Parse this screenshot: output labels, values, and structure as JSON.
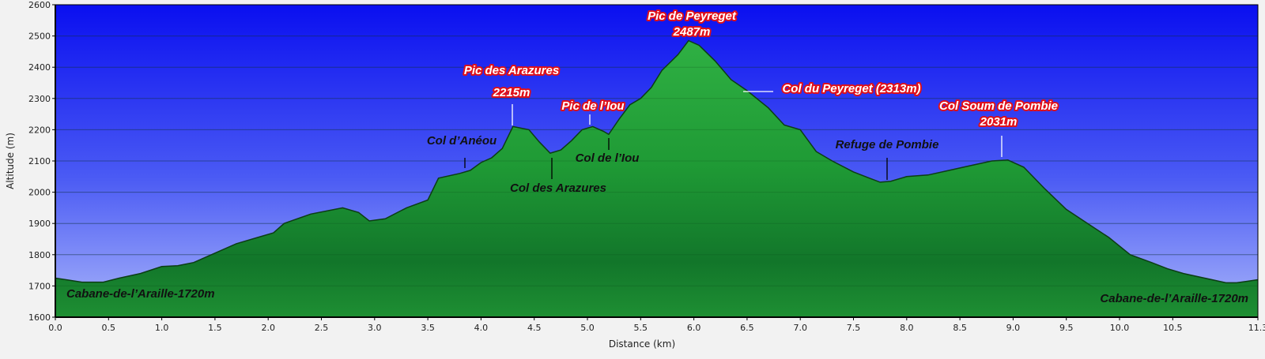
{
  "chart_data": {
    "type": "area",
    "xlabel": "Distance   (km)",
    "ylabel": "Altitude (m)",
    "xlim": [
      0,
      11.3
    ],
    "ylim": [
      1600,
      2600
    ],
    "grid": true,
    "x_ticks": [
      "0.0",
      "0.5",
      "1.0",
      "1.5",
      "2.0",
      "2.5",
      "3.0",
      "3.5",
      "4.0",
      "4.5",
      "5.0",
      "5.5",
      "6.0",
      "6.5",
      "7.0",
      "7.5",
      "8.0",
      "8.5",
      "9.0",
      "9.5",
      "10.0",
      "10.5",
      "11.3"
    ],
    "x_tick_values": [
      0,
      0.5,
      1,
      1.5,
      2,
      2.5,
      3,
      3.5,
      4,
      4.5,
      5,
      5.5,
      6,
      6.5,
      7,
      7.5,
      8,
      8.5,
      9,
      9.5,
      10,
      10.5,
      11.3
    ],
    "y_ticks": [
      1600,
      1700,
      1800,
      1900,
      2000,
      2100,
      2200,
      2300,
      2400,
      2500,
      2600
    ],
    "series": [
      {
        "x": [
          0,
          0.1,
          0.25,
          0.45,
          0.6,
          0.8,
          1.0,
          1.15,
          1.3,
          1.5,
          1.7,
          1.9,
          2.05,
          2.15,
          2.4,
          2.55,
          2.7,
          2.85,
          2.95,
          3.1,
          3.3,
          3.5,
          3.6,
          3.8,
          3.9,
          4.0,
          4.1,
          4.2,
          4.3,
          4.45,
          4.55,
          4.65,
          4.75,
          4.85,
          4.95,
          5.05,
          5.15,
          5.2,
          5.3,
          5.4,
          5.5,
          5.6,
          5.7,
          5.85,
          5.95,
          6.05,
          6.2,
          6.35,
          6.5,
          6.7,
          6.85,
          7.0,
          7.15,
          7.3,
          7.5,
          7.65,
          7.75,
          7.85,
          8.0,
          8.2,
          8.4,
          8.6,
          8.8,
          8.95,
          9.1,
          9.3,
          9.5,
          9.7,
          9.9,
          10.1,
          10.3,
          10.45,
          10.6,
          10.8,
          11.0,
          11.1,
          11.2,
          11.3
        ],
        "y": [
          1725,
          1720,
          1712,
          1712,
          1725,
          1740,
          1762,
          1765,
          1775,
          1805,
          1835,
          1855,
          1870,
          1900,
          1930,
          1940,
          1950,
          1935,
          1908,
          1915,
          1950,
          1975,
          2045,
          2060,
          2070,
          2095,
          2110,
          2140,
          2210,
          2200,
          2160,
          2125,
          2135,
          2165,
          2200,
          2210,
          2195,
          2185,
          2235,
          2280,
          2300,
          2335,
          2390,
          2440,
          2485,
          2470,
          2420,
          2360,
          2325,
          2270,
          2215,
          2200,
          2130,
          2100,
          2065,
          2045,
          2032,
          2035,
          2050,
          2055,
          2070,
          2085,
          2100,
          2103,
          2080,
          2010,
          1945,
          1900,
          1855,
          1800,
          1775,
          1755,
          1740,
          1725,
          1710,
          1710,
          1715,
          1720
        ]
      }
    ],
    "annotations": [
      {
        "lines": [
          "Pic de Peyreget",
          "2487m"
        ],
        "style": "red"
      },
      {
        "lines": [
          "Pic des Arazures",
          "2215m"
        ],
        "style": "red"
      },
      {
        "lines": [
          "Pic de l’Iou"
        ],
        "style": "red"
      },
      {
        "lines": [
          "Col du Peyreget (2313m)"
        ],
        "style": "red"
      },
      {
        "lines": [
          "Col Soum de Pombie",
          "2031m"
        ],
        "style": "red"
      },
      {
        "lines": [
          "Col d’Anéou"
        ],
        "style": "dark"
      },
      {
        "lines": [
          "Col des Arazures"
        ],
        "style": "dark"
      },
      {
        "lines": [
          "Col de l’Iou"
        ],
        "style": "dark"
      },
      {
        "lines": [
          "Refuge de Pombie"
        ],
        "style": "dark"
      },
      {
        "lines": [
          "Cabane-de-l’Araille-1720m"
        ],
        "style": "dark"
      },
      {
        "lines": [
          "Cabane-de-l’Araille-1720m"
        ],
        "style": "dark"
      }
    ]
  }
}
